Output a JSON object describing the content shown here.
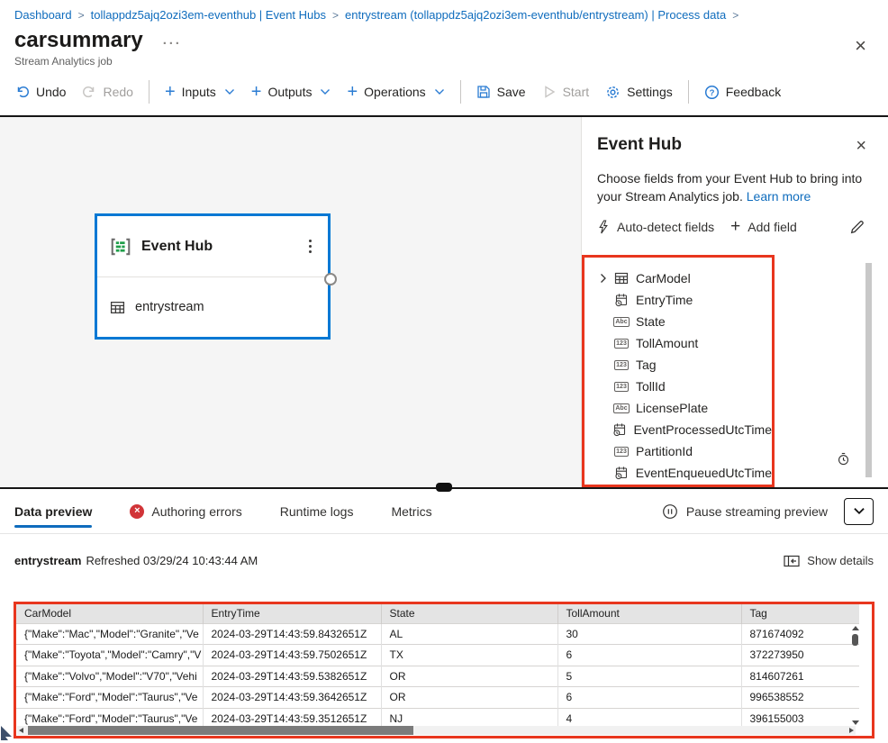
{
  "breadcrumb": {
    "separator": ">",
    "items": [
      "Dashboard",
      "tollappdz5ajq2ozi3em-eventhub | Event Hubs",
      "entrystream (tollappdz5ajq2ozi3em-eventhub/entrystream) | Process data"
    ]
  },
  "header": {
    "title": "carsummary",
    "menu_ellipsis": "···",
    "subtitle": "Stream Analytics job"
  },
  "toolbar": {
    "undo": "Undo",
    "redo": "Redo",
    "inputs": "Inputs",
    "outputs": "Outputs",
    "operations": "Operations",
    "save": "Save",
    "start": "Start",
    "settings": "Settings",
    "feedback": "Feedback"
  },
  "canvas": {
    "node": {
      "type_label": "Event Hub",
      "name": "entrystream"
    }
  },
  "panel": {
    "title": "Event Hub",
    "description": "Choose fields from your Event Hub to bring into your Stream Analytics job. ",
    "learn_more_label": "Learn more",
    "auto_detect_label": "Auto-detect fields",
    "add_field_label": "Add field",
    "type_glyphs": {
      "string": "Abc",
      "number": "123"
    },
    "fields": [
      {
        "name": "CarModel",
        "type": "record",
        "expandable": true
      },
      {
        "name": "EntryTime",
        "type": "datetime",
        "expandable": false
      },
      {
        "name": "State",
        "type": "string",
        "expandable": false
      },
      {
        "name": "TollAmount",
        "type": "number",
        "expandable": false
      },
      {
        "name": "Tag",
        "type": "number",
        "expandable": false
      },
      {
        "name": "TollId",
        "type": "number",
        "expandable": false
      },
      {
        "name": "LicensePlate",
        "type": "string",
        "expandable": false
      },
      {
        "name": "EventProcessedUtcTime",
        "type": "datetime",
        "expandable": false
      },
      {
        "name": "PartitionId",
        "type": "number",
        "expandable": false
      },
      {
        "name": "EventEnqueuedUtcTime",
        "type": "datetime",
        "expandable": false
      }
    ]
  },
  "tabs": {
    "items": [
      {
        "label": "Data preview",
        "active": true,
        "error": false
      },
      {
        "label": "Authoring errors",
        "active": false,
        "error": true
      },
      {
        "label": "Runtime logs",
        "active": false,
        "error": false
      },
      {
        "label": "Metrics",
        "active": false,
        "error": false
      }
    ],
    "pause_label": "Pause streaming preview"
  },
  "preview": {
    "source": "entrystream",
    "refreshed": "Refreshed 03/29/24 10:43:44 AM",
    "show_details_label": "Show details",
    "table": {
      "columns": [
        "CarModel",
        "EntryTime",
        "State",
        "TollAmount",
        "Tag"
      ],
      "rows": [
        [
          "{\"Make\":\"Mac\",\"Model\":\"Granite\",\"Ve",
          "2024-03-29T14:43:59.8432651Z",
          "AL",
          "30",
          "871674092"
        ],
        [
          "{\"Make\":\"Toyota\",\"Model\":\"Camry\",\"V",
          "2024-03-29T14:43:59.7502651Z",
          "TX",
          "6",
          "372273950"
        ],
        [
          "{\"Make\":\"Volvo\",\"Model\":\"V70\",\"Vehi",
          "2024-03-29T14:43:59.5382651Z",
          "OR",
          "5",
          "814607261"
        ],
        [
          "{\"Make\":\"Ford\",\"Model\":\"Taurus\",\"Ve",
          "2024-03-29T14:43:59.3642651Z",
          "OR",
          "6",
          "996538552"
        ],
        [
          "{\"Make\":\"Ford\",\"Model\":\"Taurus\",\"Ve",
          "2024-03-29T14:43:59.3512651Z",
          "NJ",
          "4",
          "396155003"
        ]
      ]
    }
  },
  "colors": {
    "accent": "#0078d4",
    "link": "#0f6cbd",
    "highlight": "#e8361e",
    "error": "#d13438",
    "eventhub_green": "#1e9e49"
  }
}
